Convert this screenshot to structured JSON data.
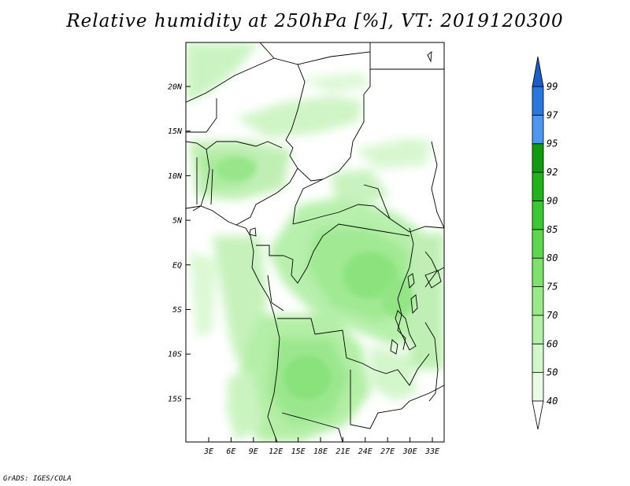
{
  "title": "Relative humidity at 250hPa [%], VT: 2019120300",
  "credit": "GrADS: IGES/COLA",
  "map": {
    "lat_labels": [
      "20N",
      "15N",
      "10N",
      "5N",
      "EQ",
      "5S",
      "10S",
      "15S"
    ],
    "lon_labels": [
      "3E",
      "6E",
      "9E",
      "12E",
      "15E",
      "18E",
      "21E",
      "24E",
      "27E",
      "30E",
      "33E"
    ]
  },
  "colorbar": {
    "levels": [
      "40",
      "50",
      "60",
      "70",
      "75",
      "80",
      "85",
      "90",
      "92",
      "95",
      "97",
      "99"
    ],
    "colors": {
      "40-50": "#e9fbe5",
      "50-60": "#d2f7cb",
      "60-70": "#b5f0a8",
      "70-75": "#99e98a",
      "75-80": "#7fe06e",
      "80-85": "#5fd550",
      "85-90": "#3ec735",
      "90-92": "#22b31c",
      "92-95": "#129a12",
      "95-97": "#4f97ee",
      "97-99": "#2a77dd",
      "99+": "#1a5dc4",
      "below-40": "#ffffff"
    }
  }
}
